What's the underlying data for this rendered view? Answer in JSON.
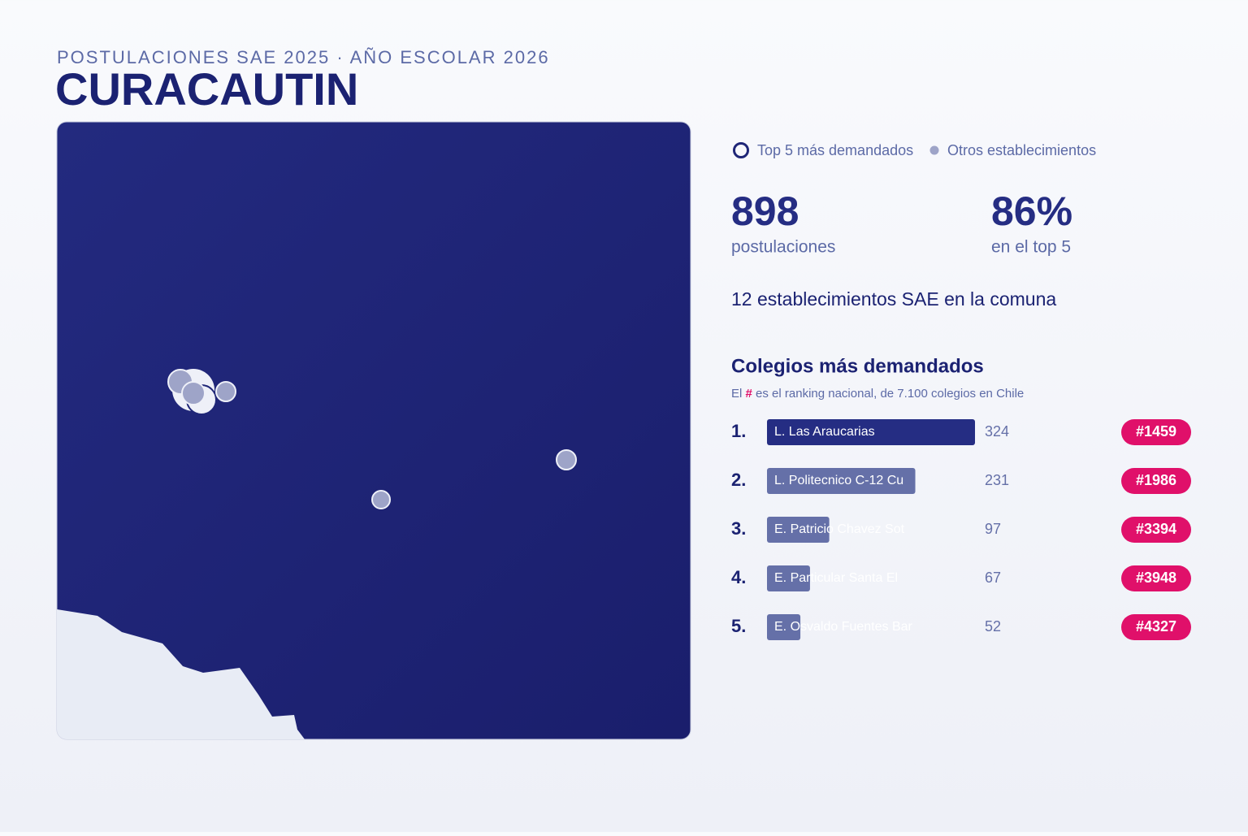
{
  "header": {
    "subtitle": "POSTULACIONES SAE 2025 · AÑO ESCOLAR 2026",
    "title": "CURACAUTIN"
  },
  "legend": {
    "top": "Top 5 más demandados",
    "others": "Otros establecimientos"
  },
  "stats": {
    "applications": "898",
    "applications_label": "postulaciones",
    "top_share": "86%",
    "top_share_label": "en el top 5",
    "schools": "12 establecimientos SAE en la comuna"
  },
  "ranking": {
    "title": "Colegios más demandados",
    "note_prefix": "El",
    "note_hash": "#",
    "note_suffix": "es el ranking nacional, de 7.100 colegios en Chile",
    "items": [
      {
        "position": "1.",
        "name": "L. Las Araucarias",
        "value": 324,
        "rank": "#1459"
      },
      {
        "position": "2.",
        "name": "L. Politecnico C-12 Cu",
        "value": 231,
        "rank": "#1986"
      },
      {
        "position": "3.",
        "name": "E. Patricio Chavez Sot",
        "value": 97,
        "rank": "#3394"
      },
      {
        "position": "4.",
        "name": "E. Particular Santa El",
        "value": 67,
        "rank": "#3948"
      },
      {
        "position": "5.",
        "name": "E. Osvaldo Fuentes Bar",
        "value": 52,
        "rank": "#4327"
      }
    ]
  }
}
